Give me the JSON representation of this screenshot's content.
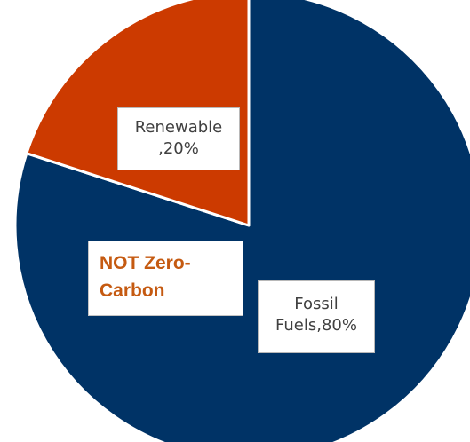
{
  "chart_data": {
    "type": "pie",
    "slices": [
      {
        "category": "Fossil Fuels",
        "value": 80,
        "color": "#003366"
      },
      {
        "category": "Renewable",
        "value": 20,
        "color": "#cc3a00"
      }
    ],
    "data_labels": {
      "fossil": [
        "Fossil",
        "Fuels,80%"
      ],
      "renewable": [
        "Renewable",
        ",20%"
      ]
    },
    "annotation": [
      "NOT Zero-",
      "Carbon"
    ],
    "annotation_color": "#c55a11",
    "start_angle_deg": 0,
    "direction": "clockwise"
  }
}
